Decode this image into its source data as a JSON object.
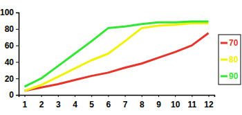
{
  "chart_data": {
    "type": "line",
    "categories": [
      "1",
      "2",
      "3",
      "4",
      "5",
      "6",
      "7",
      "8",
      "9",
      "10",
      "11",
      "12"
    ],
    "series": [
      {
        "name": "70",
        "color": "#e8332a",
        "values": [
          5,
          9,
          13,
          18,
          23,
          27,
          33,
          38,
          45,
          52,
          60,
          75
        ]
      },
      {
        "name": "80",
        "color": "#f2f200",
        "values": [
          5,
          12,
          22,
          32,
          42,
          50,
          65,
          81,
          84,
          85,
          87,
          87
        ]
      },
      {
        "name": "90",
        "color": "#33e633",
        "values": [
          10,
          20,
          35,
          50,
          65,
          81,
          83,
          86,
          88,
          88,
          89,
          89
        ]
      }
    ],
    "ylim": [
      0,
      100
    ],
    "yticks": [
      0,
      20,
      40,
      60,
      80,
      100
    ],
    "grid": false,
    "legend": "right"
  }
}
